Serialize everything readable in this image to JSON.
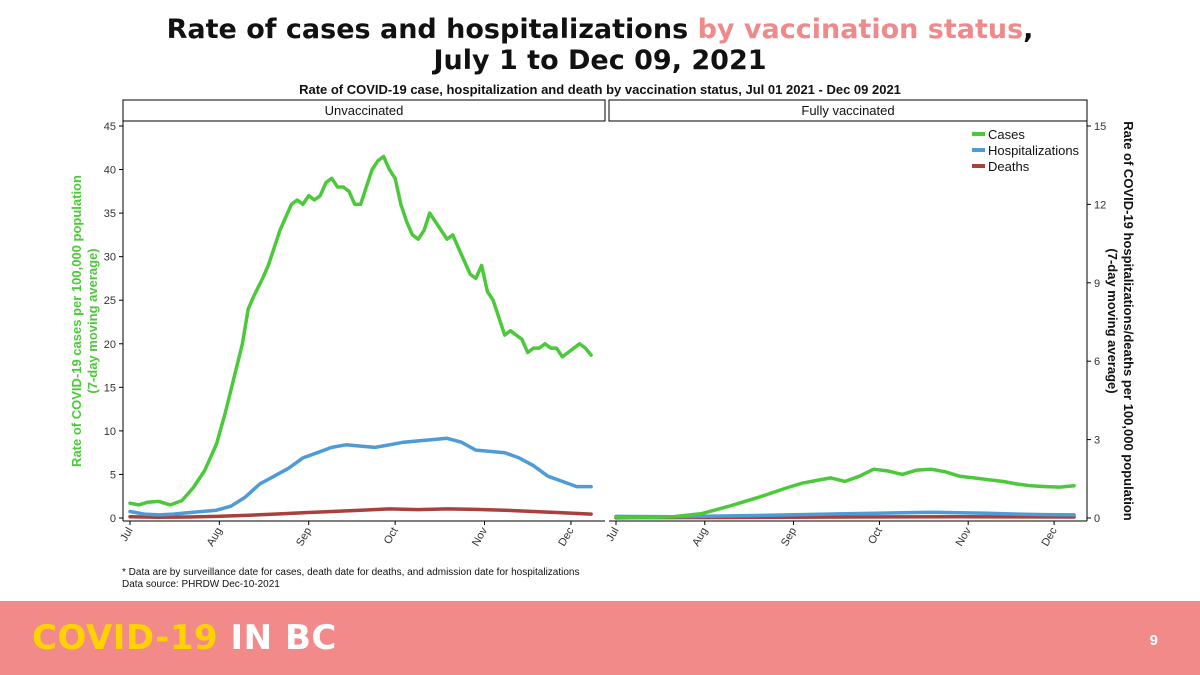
{
  "slide": {
    "title_part1": "Rate of cases and hospitalizations ",
    "title_accent": "by vaccination status",
    "title_part2": ",",
    "title_line2": "July 1 to Dec 09, 2021",
    "footer_brand_1": "COVID-19",
    "footer_brand_2": " IN BC",
    "page_number": "9",
    "colors": {
      "accent": "#f08a8a",
      "footer_bg": "#f28a8a",
      "brand_yellow": "#ffd200"
    }
  },
  "chart_data": {
    "type": "line",
    "title": "Rate of COVID-19 case, hospitalization and death by vaccination status, Jul 01 2021 - Dec 09 2021",
    "ylabel_left": [
      "Rate of COVID-19 cases per 100,000 population",
      "(7-day moving average)"
    ],
    "ylabel_right": [
      "Rate of COVID-19 hospitalizations/deaths per 100,000 population",
      "(7-day moving average)"
    ],
    "ylim_left": [
      0,
      45
    ],
    "yticks_left": [
      0,
      5,
      10,
      15,
      20,
      25,
      30,
      35,
      40,
      45
    ],
    "ylim_right": [
      0,
      15
    ],
    "yticks_right": [
      0,
      3,
      6,
      9,
      12,
      15
    ],
    "x_tick_positions": [
      0,
      31,
      62,
      92,
      123,
      153
    ],
    "xticks": [
      "Jul",
      "Aug",
      "Sep",
      "Oct",
      "Nov",
      "Dec"
    ],
    "xlim": [
      0,
      161
    ],
    "legend": {
      "position": "top-right",
      "items": [
        {
          "name": "Cases",
          "color": "#4cc93a"
        },
        {
          "name": "Hospitalizations",
          "color": "#4f9bd6"
        },
        {
          "name": "Deaths",
          "color": "#a8413c"
        }
      ]
    },
    "panels": [
      {
        "name": "Unvaccinated",
        "series": [
          {
            "name": "Cases",
            "axis": "left",
            "color": "#4cc93a",
            "x": [
              0,
              3,
              6,
              10,
              14,
              18,
              22,
              26,
              30,
              33,
              36,
              39,
              41,
              43,
              46,
              48,
              50,
              52,
              54,
              56,
              58,
              60,
              62,
              64,
              66,
              68,
              70,
              72,
              74,
              76,
              78,
              80,
              82,
              84,
              86,
              88,
              90,
              92,
              94,
              96,
              98,
              100,
              102,
              104,
              106,
              108,
              110,
              112,
              114,
              116,
              118,
              120,
              122,
              124,
              126,
              128,
              130,
              132,
              134,
              136,
              138,
              140,
              142,
              144,
              146,
              148,
              150,
              152,
              154,
              156,
              158,
              160
            ],
            "y": [
              1.7,
              1.5,
              1.8,
              1.9,
              1.5,
              2.0,
              3.5,
              5.5,
              8.5,
              12,
              16,
              20,
              24,
              25.5,
              27.5,
              29,
              31,
              33,
              34.5,
              36,
              36.5,
              36,
              37,
              36.5,
              37,
              38.5,
              39,
              38,
              38,
              37.5,
              36,
              36,
              38,
              40,
              41,
              41.5,
              40,
              39,
              36,
              34,
              32.5,
              32,
              33,
              35,
              34,
              33,
              32,
              32.5,
              31,
              29.5,
              28,
              27.5,
              29,
              26,
              25,
              23,
              21,
              21.5,
              21,
              20.5,
              19,
              19.5,
              19.5,
              20,
              19.5,
              19.5,
              18.5,
              19,
              19.5,
              20,
              19.5,
              18.7
            ]
          },
          {
            "name": "Hospitalizations",
            "axis": "right",
            "color": "#4f9bd6",
            "x": [
              0,
              5,
              10,
              15,
              20,
              25,
              30,
              35,
              40,
              45,
              50,
              55,
              60,
              65,
              70,
              75,
              80,
              85,
              90,
              95,
              100,
              105,
              110,
              115,
              120,
              125,
              130,
              135,
              140,
              145,
              150,
              155,
              160
            ],
            "y": [
              0.25,
              0.15,
              0.12,
              0.15,
              0.2,
              0.25,
              0.3,
              0.45,
              0.8,
              1.3,
              1.6,
              1.9,
              2.3,
              2.5,
              2.7,
              2.8,
              2.75,
              2.7,
              2.8,
              2.9,
              2.95,
              3.0,
              3.05,
              2.9,
              2.6,
              2.55,
              2.5,
              2.3,
              2.0,
              1.6,
              1.4,
              1.2,
              1.2
            ]
          },
          {
            "name": "Deaths",
            "axis": "right",
            "color": "#a8413c",
            "x": [
              0,
              10,
              20,
              30,
              40,
              50,
              60,
              70,
              80,
              90,
              100,
              110,
              120,
              130,
              140,
              150,
              160
            ],
            "y": [
              0.05,
              0.03,
              0.04,
              0.06,
              0.1,
              0.15,
              0.2,
              0.25,
              0.3,
              0.35,
              0.32,
              0.35,
              0.33,
              0.3,
              0.25,
              0.2,
              0.15
            ]
          }
        ]
      },
      {
        "name": "Fully vaccinated",
        "series": [
          {
            "name": "Cases",
            "axis": "left",
            "color": "#4cc93a",
            "x": [
              0,
              10,
              20,
              30,
              40,
              50,
              60,
              65,
              70,
              75,
              80,
              85,
              90,
              95,
              100,
              105,
              110,
              115,
              120,
              125,
              130,
              135,
              140,
              145,
              150,
              155,
              160
            ],
            "y": [
              0.1,
              0.05,
              0.15,
              0.5,
              1.4,
              2.4,
              3.5,
              4.0,
              4.3,
              4.6,
              4.2,
              4.8,
              5.6,
              5.4,
              5.0,
              5.5,
              5.6,
              5.3,
              4.8,
              4.6,
              4.4,
              4.2,
              3.9,
              3.7,
              3.6,
              3.55,
              3.7
            ]
          },
          {
            "name": "Hospitalizations",
            "axis": "right",
            "color": "#4f9bd6",
            "x": [
              0,
              20,
              40,
              60,
              80,
              100,
              110,
              120,
              130,
              140,
              150,
              160
            ],
            "y": [
              0.06,
              0.05,
              0.08,
              0.12,
              0.16,
              0.2,
              0.22,
              0.2,
              0.18,
              0.15,
              0.13,
              0.12
            ]
          },
          {
            "name": "Deaths",
            "axis": "right",
            "color": "#a8413c",
            "x": [
              0,
              40,
              80,
              120,
              160
            ],
            "y": [
              0.01,
              0.02,
              0.04,
              0.05,
              0.04
            ]
          }
        ]
      }
    ],
    "notes": [
      "* Data are by surveillance date for cases, death date for deaths, and admission date for hospitalizations",
      "Data source: PHRDW Dec-10-2021"
    ]
  }
}
